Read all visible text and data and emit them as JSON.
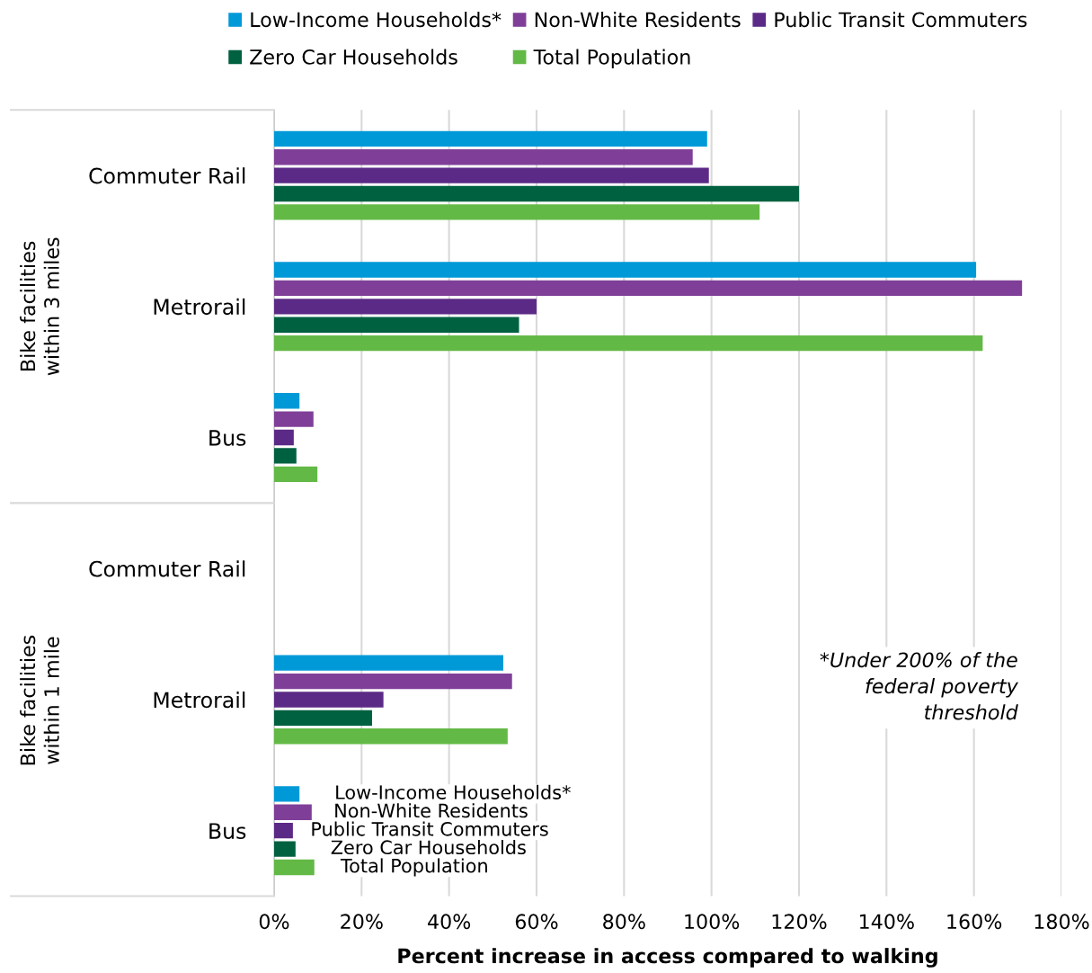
{
  "chart_data": {
    "type": "bar",
    "orientation": "horizontal",
    "xlabel": "Percent increase in access compared to walking",
    "categories": [
      "Commuter Rail",
      "Metrorail",
      "Bus",
      "Commuter Rail",
      "Metrorail",
      "Bus"
    ],
    "series": [
      {
        "name": "Low-Income Households*",
        "color": "#0099d8",
        "values": [
          99,
          160.5,
          5.8,
          null,
          52.4,
          5.8
        ]
      },
      {
        "name": "Non-White Residents",
        "color": "#7f3f98",
        "values": [
          95.7,
          171,
          9,
          null,
          54.4,
          8.6
        ]
      },
      {
        "name": "Public Transit Commuters",
        "color": "#5b2a86",
        "values": [
          99.4,
          60,
          4.5,
          null,
          25,
          4.3
        ]
      },
      {
        "name": "Zero Car Households",
        "color": "#006140",
        "values": [
          120,
          56,
          5.1,
          null,
          22.4,
          4.9
        ]
      },
      {
        "name": "Total Population",
        "color": "#63b946",
        "values": [
          111,
          162,
          9.9,
          null,
          53.4,
          9.2
        ]
      }
    ],
    "xlim": [
      0,
      180
    ],
    "xticks": [
      {
        "value": 0,
        "label": "0%"
      },
      {
        "value": 20,
        "label": "20%"
      },
      {
        "value": 40,
        "label": "40%"
      },
      {
        "value": 60,
        "label": "60%"
      },
      {
        "value": 80,
        "label": "80%"
      },
      {
        "value": 100,
        "label": "100%"
      },
      {
        "value": 120,
        "label": "120%"
      },
      {
        "value": 140,
        "label": "140%"
      },
      {
        "value": 160,
        "label": "160%"
      },
      {
        "value": 180,
        "label": "180%"
      }
    ],
    "grid": "x",
    "legend": "top",
    "annotations": [
      "Bike facilities\nwithin 3 miles",
      "Bike facilities\nwithin 1 mile",
      "*Under 200% of the\nfederal poverty\nthreshold",
      "Low-Income Households*",
      "Non-White Residents",
      "Public Transit Commuters",
      "Zero Car Households",
      "Total Population"
    ]
  }
}
